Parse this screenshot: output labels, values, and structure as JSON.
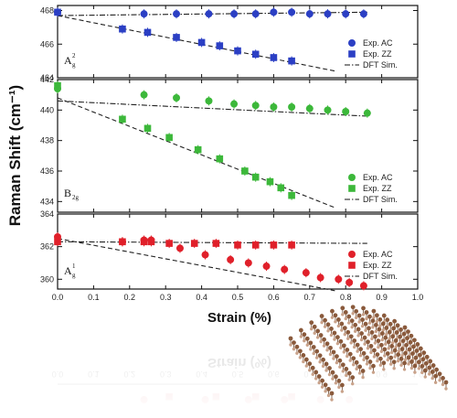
{
  "colors": {
    "panel1": "#2b3fc4",
    "panel2": "#3cb83a",
    "panel3": "#e0202a",
    "fit": "#222222",
    "lattice": "#8a5a3c"
  },
  "chart_data": {
    "type": "scatter",
    "xlabel": "Strain (%)",
    "ylabel": "Raman Shift (cm⁻¹)",
    "xlim": [
      0.0,
      1.0
    ],
    "xticks": [
      "0.0",
      "0.1",
      "0.2",
      "0.3",
      "0.4",
      "0.5",
      "0.6",
      "0.7",
      "0.8",
      "0.9",
      "1.0"
    ],
    "panels": [
      {
        "mode": "A",
        "mode_sup": "2",
        "mode_sub": "g",
        "ylim": [
          464,
          468.3
        ],
        "yticks": [
          "468",
          "466",
          "464"
        ],
        "ytick_values": [
          468,
          466,
          464
        ],
        "legend": [
          "Exp. AC",
          "Exp. ZZ",
          "DFT Sim."
        ],
        "series": [
          {
            "name": "Exp. AC",
            "marker": "circle",
            "x": [
              0.0,
              0.24,
              0.33,
              0.42,
              0.49,
              0.55,
              0.6,
              0.65,
              0.7,
              0.75,
              0.8,
              0.85
            ],
            "y": [
              467.9,
              467.8,
              467.8,
              467.8,
              467.8,
              467.8,
              467.9,
              467.9,
              467.8,
              467.8,
              467.8,
              467.8
            ]
          },
          {
            "name": "Exp. ZZ",
            "marker": "square",
            "x": [
              0.0,
              0.18,
              0.25,
              0.33,
              0.4,
              0.45,
              0.5,
              0.55,
              0.6,
              0.65
            ],
            "y": [
              467.9,
              466.9,
              466.7,
              466.4,
              466.1,
              465.9,
              465.6,
              465.4,
              465.2,
              465.0
            ]
          }
        ],
        "fits": [
          {
            "style": "dashed",
            "x": [
              0.0,
              0.77
            ],
            "y": [
              467.7,
              464.4
            ]
          },
          {
            "style": "dashdot",
            "x": [
              0.0,
              0.86
            ],
            "y": [
              467.7,
              467.9
            ]
          }
        ]
      },
      {
        "mode": "B",
        "mode_sup": "",
        "mode_sub": "2g",
        "ylim": [
          433.3,
          442
        ],
        "yticks": [
          "442",
          "440",
          "438",
          "436",
          "434"
        ],
        "ytick_values": [
          442,
          440,
          438,
          436,
          434
        ],
        "legend": [
          "Exp. AC",
          "Exp. ZZ",
          "DFT Sim."
        ],
        "series": [
          {
            "name": "Exp. AC",
            "marker": "circle",
            "x": [
              0.0,
              0.24,
              0.33,
              0.42,
              0.49,
              0.55,
              0.6,
              0.65,
              0.7,
              0.75,
              0.8,
              0.86
            ],
            "y": [
              441.4,
              441.0,
              440.8,
              440.6,
              440.4,
              440.3,
              440.2,
              440.2,
              440.1,
              440.0,
              439.9,
              439.8
            ]
          },
          {
            "name": "Exp. ZZ",
            "marker": "square",
            "x": [
              0.0,
              0.18,
              0.25,
              0.31,
              0.39,
              0.45,
              0.52,
              0.55,
              0.59,
              0.62,
              0.65
            ],
            "y": [
              441.6,
              439.4,
              438.8,
              438.2,
              437.4,
              436.8,
              436.0,
              435.6,
              435.3,
              434.9,
              434.4
            ]
          }
        ],
        "fits": [
          {
            "style": "dashed",
            "x": [
              0.0,
              0.77
            ],
            "y": [
              440.8,
              433.6
            ]
          },
          {
            "style": "dashdot",
            "x": [
              0.0,
              0.86
            ],
            "y": [
              440.6,
              439.6
            ]
          }
        ]
      },
      {
        "mode": "A",
        "mode_sup": "1",
        "mode_sub": "g",
        "ylim": [
          359.4,
          364
        ],
        "yticks": [
          "364",
          "362",
          "360"
        ],
        "ytick_values": [
          364,
          362,
          360
        ],
        "legend": [
          "Exp. AC",
          "Exp. ZZ",
          "DFT Sim."
        ],
        "series": [
          {
            "name": "Exp. AC",
            "marker": "circle",
            "x": [
              0.0,
              0.18,
              0.24,
              0.26,
              0.34,
              0.41,
              0.48,
              0.53,
              0.58,
              0.63,
              0.69,
              0.73,
              0.78,
              0.81,
              0.85
            ],
            "y": [
              362.6,
              362.3,
              362.4,
              362.4,
              361.9,
              361.5,
              361.2,
              361.0,
              360.8,
              360.6,
              360.4,
              360.1,
              360.0,
              359.8,
              359.6
            ]
          },
          {
            "name": "Exp. ZZ",
            "marker": "square",
            "x": [
              0.0,
              0.18,
              0.24,
              0.26,
              0.31,
              0.38,
              0.44,
              0.5,
              0.55,
              0.6,
              0.65
            ],
            "y": [
              362.3,
              362.3,
              362.3,
              362.3,
              362.2,
              362.2,
              362.2,
              362.1,
              362.1,
              362.1,
              362.1
            ]
          }
        ],
        "fits": [
          {
            "style": "dashed",
            "x": [
              0.0,
              0.77
            ],
            "y": [
              362.5,
              359.3
            ]
          },
          {
            "style": "dashdot",
            "x": [
              0.0,
              0.86
            ],
            "y": [
              362.3,
              362.2
            ]
          }
        ]
      }
    ]
  }
}
